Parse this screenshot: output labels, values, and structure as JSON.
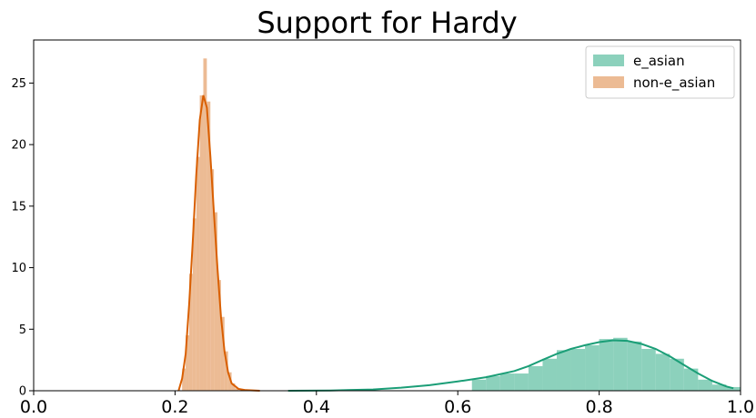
{
  "chart_data": {
    "type": "histogram",
    "title": "Support for Hardy",
    "xlabel": "",
    "ylabel": "",
    "xlim": [
      0.0,
      1.0
    ],
    "ylim": [
      0,
      28.5
    ],
    "x_ticks": [
      "0.0",
      "0.2",
      "0.4",
      "0.6",
      "0.8",
      "1.0"
    ],
    "y_ticks": [
      "0",
      "5",
      "10",
      "15",
      "20",
      "25"
    ],
    "grid": false,
    "legend_position": "top-right",
    "series": [
      {
        "name": "e_asian",
        "color": "#66c2a5",
        "line_color": "#1b9e77",
        "bins": [
          [
            0.62,
            0.64,
            0.9
          ],
          [
            0.64,
            0.66,
            1.2
          ],
          [
            0.66,
            0.68,
            1.4
          ],
          [
            0.68,
            0.7,
            1.4
          ],
          [
            0.7,
            0.72,
            2.0
          ],
          [
            0.72,
            0.74,
            2.6
          ],
          [
            0.74,
            0.76,
            3.3
          ],
          [
            0.76,
            0.78,
            3.4
          ],
          [
            0.78,
            0.8,
            3.7
          ],
          [
            0.8,
            0.82,
            4.2
          ],
          [
            0.82,
            0.84,
            4.3
          ],
          [
            0.84,
            0.86,
            4.0
          ],
          [
            0.86,
            0.88,
            3.4
          ],
          [
            0.88,
            0.9,
            3.0
          ],
          [
            0.9,
            0.92,
            2.6
          ],
          [
            0.92,
            0.94,
            1.8
          ],
          [
            0.94,
            0.96,
            0.9
          ],
          [
            0.96,
            0.98,
            0.5
          ],
          [
            0.98,
            1.0,
            0.3
          ]
        ],
        "kde": [
          [
            0.36,
            0.0
          ],
          [
            0.42,
            0.02
          ],
          [
            0.48,
            0.1
          ],
          [
            0.52,
            0.25
          ],
          [
            0.56,
            0.45
          ],
          [
            0.6,
            0.75
          ],
          [
            0.64,
            1.1
          ],
          [
            0.68,
            1.6
          ],
          [
            0.7,
            2.0
          ],
          [
            0.72,
            2.5
          ],
          [
            0.74,
            3.0
          ],
          [
            0.76,
            3.4
          ],
          [
            0.78,
            3.7
          ],
          [
            0.8,
            3.95
          ],
          [
            0.82,
            4.1
          ],
          [
            0.84,
            4.05
          ],
          [
            0.86,
            3.8
          ],
          [
            0.88,
            3.4
          ],
          [
            0.9,
            2.8
          ],
          [
            0.92,
            2.1
          ],
          [
            0.94,
            1.4
          ],
          [
            0.96,
            0.8
          ],
          [
            0.98,
            0.35
          ],
          [
            0.99,
            0.2
          ]
        ]
      },
      {
        "name": "non-e_asian",
        "color": "#e5a470",
        "line_color": "#d95f02",
        "bins": [
          [
            0.21,
            0.215,
            1.8
          ],
          [
            0.215,
            0.22,
            4.5
          ],
          [
            0.22,
            0.225,
            9.5
          ],
          [
            0.225,
            0.23,
            14.0
          ],
          [
            0.23,
            0.235,
            19.0
          ],
          [
            0.235,
            0.24,
            24.0
          ],
          [
            0.24,
            0.245,
            27.0
          ],
          [
            0.245,
            0.25,
            23.5
          ],
          [
            0.25,
            0.255,
            18.0
          ],
          [
            0.255,
            0.26,
            14.5
          ],
          [
            0.26,
            0.265,
            9.0
          ],
          [
            0.265,
            0.27,
            6.0
          ],
          [
            0.27,
            0.275,
            3.2
          ],
          [
            0.275,
            0.28,
            1.5
          ],
          [
            0.28,
            0.285,
            0.6
          ],
          [
            0.285,
            0.29,
            0.2
          ]
        ],
        "kde": [
          [
            0.205,
            0.0
          ],
          [
            0.21,
            1.0
          ],
          [
            0.215,
            3.0
          ],
          [
            0.22,
            7.0
          ],
          [
            0.225,
            12.0
          ],
          [
            0.23,
            17.5
          ],
          [
            0.235,
            22.0
          ],
          [
            0.24,
            24.0
          ],
          [
            0.245,
            23.0
          ],
          [
            0.25,
            19.0
          ],
          [
            0.255,
            14.5
          ],
          [
            0.26,
            10.0
          ],
          [
            0.265,
            6.0
          ],
          [
            0.27,
            3.2
          ],
          [
            0.275,
            1.5
          ],
          [
            0.28,
            0.6
          ],
          [
            0.29,
            0.15
          ],
          [
            0.3,
            0.05
          ],
          [
            0.32,
            0.0
          ]
        ]
      }
    ]
  }
}
